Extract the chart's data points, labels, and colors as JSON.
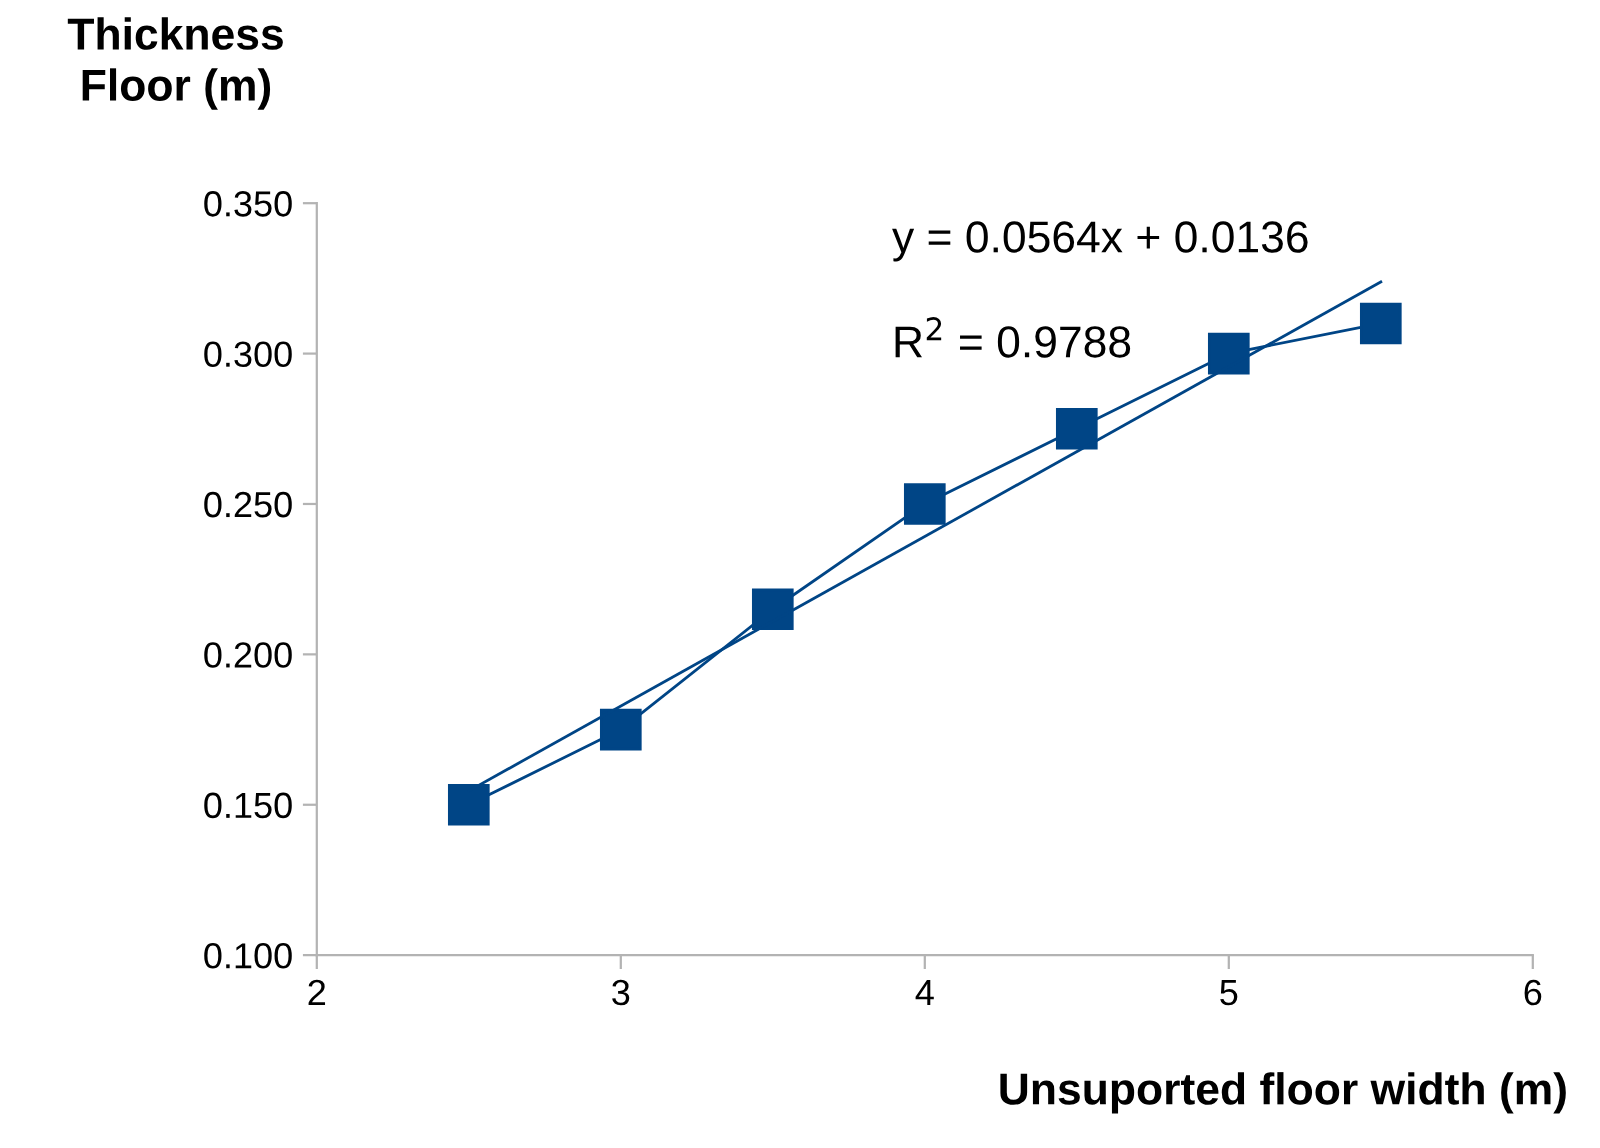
{
  "chart_data": {
    "type": "line",
    "xlabel": "Unsuported floor width (m)",
    "ylabel": "Thickness\nFloor (m)",
    "xlim": [
      2,
      6
    ],
    "xticks": [
      2,
      3,
      4,
      5,
      6
    ],
    "ylim": [
      0.1,
      0.35
    ],
    "yticks": [
      {
        "value": 0.1,
        "label": "0.100"
      },
      {
        "value": 0.15,
        "label": "0.150"
      },
      {
        "value": 0.2,
        "label": "0.200"
      },
      {
        "value": 0.25,
        "label": "0.250"
      },
      {
        "value": 0.3,
        "label": "0.300"
      },
      {
        "value": 0.35,
        "label": "0.350"
      }
    ],
    "grid": false,
    "series": [
      {
        "color": "#004586",
        "marker": "square",
        "x": [
          2.5,
          3,
          3.5,
          4,
          4.5,
          5,
          5.5
        ],
        "values": [
          0.15,
          0.175,
          0.215,
          0.25,
          0.275,
          0.3,
          0.31
        ]
      },
      {
        "color": "#004586",
        "marker": "none",
        "x": [
          2.5,
          5.5
        ],
        "values": [
          0.1546,
          0.3238
        ]
      }
    ],
    "annotations": [
      "y = 0.0564x + 0.0136",
      "R$^{2}$ = 0.9788"
    ]
  }
}
